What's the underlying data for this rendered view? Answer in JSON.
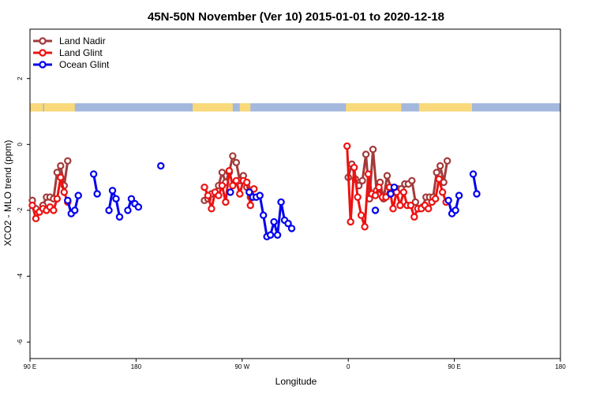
{
  "chart_data": {
    "type": "line",
    "title": "45N-50N November (Ver 10)   2015-01-01 to 2020-12-18",
    "xlabel": "Longitude",
    "ylabel": "XCO2 - MLO trend (ppm)",
    "xlim": [
      90,
      540
    ],
    "ylim": [
      -6.5,
      3.5
    ],
    "x_ticks": [
      {
        "value": 90,
        "label": "90 E"
      },
      {
        "value": 180,
        "label": "180"
      },
      {
        "value": 270,
        "label": "90 W"
      },
      {
        "value": 360,
        "label": "0"
      },
      {
        "value": 450,
        "label": "90 E"
      },
      {
        "value": 540,
        "label": "180"
      }
    ],
    "y_ticks": [
      {
        "value": 2,
        "label": "2"
      },
      {
        "value": 0,
        "label": "0"
      },
      {
        "value": -2,
        "label": "-2"
      },
      {
        "value": -4,
        "label": "-4"
      },
      {
        "value": -6,
        "label": "-6"
      }
    ],
    "land_band": {
      "y_top": 1.25,
      "y_bottom": 1.0,
      "ocean_color": "#a3b8dc",
      "land_color": "#f9d979"
    },
    "legend_position": "top-left",
    "series": [
      {
        "name": "Land Nadir",
        "color": "#a33a3a",
        "segments": [
          [
            [
              92,
              -1.7
            ],
            [
              95,
              -1.95
            ],
            [
              98,
              -2.05
            ],
            [
              101,
              -1.85
            ],
            [
              104,
              -1.6
            ],
            [
              107,
              -1.6
            ],
            [
              110,
              -1.65
            ],
            [
              113,
              -0.85
            ],
            [
              116,
              -0.65
            ],
            [
              119,
              -1.25
            ],
            [
              122,
              -0.5
            ]
          ],
          [
            [
              238,
              -1.7
            ],
            [
              241,
              -1.65
            ],
            [
              244,
              -1.5
            ],
            [
              247,
              -1.45
            ],
            [
              250,
              -1.25
            ],
            [
              253,
              -0.85
            ],
            [
              256,
              -1.15
            ],
            [
              259,
              -0.85
            ],
            [
              262,
              -0.35
            ],
            [
              265,
              -0.55
            ],
            [
              268,
              -1.1
            ],
            [
              271,
              -0.95
            ],
            [
              274,
              -1.3
            ],
            [
              277,
              -1.6
            ]
          ],
          [
            [
              360,
              -1.0
            ],
            [
              363,
              -0.6
            ],
            [
              366,
              -1.05
            ],
            [
              369,
              -1.25
            ],
            [
              372,
              -1.1
            ],
            [
              375,
              -0.3
            ],
            [
              378,
              -1.65
            ],
            [
              381,
              -0.15
            ],
            [
              384,
              -1.4
            ],
            [
              387,
              -1.15
            ],
            [
              390,
              -1.65
            ],
            [
              393,
              -0.95
            ],
            [
              396,
              -1.3
            ],
            [
              399,
              -1.45
            ],
            [
              402,
              -1.35
            ],
            [
              405,
              -1.35
            ],
            [
              408,
              -1.2
            ],
            [
              411,
              -1.2
            ],
            [
              414,
              -1.1
            ],
            [
              417,
              -1.75
            ],
            [
              420,
              -1.95
            ],
            [
              423,
              -1.9
            ],
            [
              426,
              -1.6
            ],
            [
              429,
              -1.6
            ],
            [
              432,
              -1.6
            ],
            [
              435,
              -0.85
            ],
            [
              438,
              -0.65
            ],
            [
              441,
              -1.15
            ],
            [
              444,
              -0.5
            ]
          ]
        ]
      },
      {
        "name": "Land Glint",
        "color": "#ee1111",
        "segments": [
          [
            [
              92,
              -1.85
            ],
            [
              95,
              -2.25
            ],
            [
              98,
              -2.05
            ],
            [
              101,
              -1.95
            ],
            [
              104,
              -2.0
            ],
            [
              107,
              -1.9
            ],
            [
              110,
              -2.0
            ],
            [
              113,
              -1.65
            ],
            [
              116,
              -1.0
            ],
            [
              119,
              -1.45
            ],
            [
              122,
              -1.75
            ]
          ],
          [
            [
              238,
              -1.3
            ],
            [
              241,
              -1.55
            ],
            [
              244,
              -1.95
            ],
            [
              247,
              -1.45
            ],
            [
              250,
              -1.55
            ],
            [
              253,
              -1.25
            ],
            [
              256,
              -1.75
            ],
            [
              259,
              -0.8
            ],
            [
              262,
              -1.25
            ],
            [
              265,
              -1.1
            ],
            [
              268,
              -1.5
            ],
            [
              271,
              -1.1
            ],
            [
              274,
              -1.15
            ],
            [
              277,
              -1.85
            ],
            [
              280,
              -1.35
            ]
          ],
          [
            [
              359,
              -0.05
            ],
            [
              362,
              -2.35
            ],
            [
              365,
              -0.7
            ],
            [
              368,
              -1.6
            ],
            [
              371,
              -2.15
            ],
            [
              374,
              -2.5
            ],
            [
              377,
              -0.9
            ],
            [
              380,
              -1.5
            ],
            [
              383,
              -1.55
            ],
            [
              386,
              -1.3
            ],
            [
              389,
              -1.6
            ],
            [
              392,
              -1.6
            ],
            [
              395,
              -1.3
            ],
            [
              398,
              -1.95
            ],
            [
              401,
              -1.45
            ],
            [
              404,
              -1.85
            ],
            [
              407,
              -1.45
            ],
            [
              410,
              -1.85
            ],
            [
              413,
              -1.85
            ],
            [
              416,
              -2.2
            ],
            [
              419,
              -1.95
            ],
            [
              422,
              -1.95
            ],
            [
              425,
              -1.85
            ],
            [
              428,
              -1.95
            ],
            [
              431,
              -1.75
            ],
            [
              434,
              -1.65
            ],
            [
              437,
              -1.05
            ],
            [
              440,
              -1.45
            ],
            [
              443,
              -1.75
            ]
          ]
        ]
      },
      {
        "name": "Ocean Glint",
        "color": "#0000ee",
        "segments": [
          [
            [
              122,
              -1.7
            ],
            [
              125,
              -2.1
            ],
            [
              128,
              -2.0
            ],
            [
              131,
              -1.55
            ]
          ],
          [
            [
              144,
              -0.9
            ],
            [
              147,
              -1.5
            ]
          ],
          [
            [
              157,
              -2.0
            ],
            [
              160,
              -1.4
            ],
            [
              163,
              -1.65
            ],
            [
              166,
              -2.2
            ]
          ],
          [
            [
              173,
              -2.0
            ],
            [
              176,
              -1.65
            ],
            [
              179,
              -1.8
            ],
            [
              182,
              -1.9
            ]
          ],
          [
            [
              201,
              -0.65
            ]
          ],
          [
            [
              260,
              -1.45
            ]
          ],
          [
            [
              276,
              -1.45
            ],
            [
              279,
              -1.6
            ],
            [
              282,
              -1.6
            ],
            [
              285,
              -1.55
            ],
            [
              288,
              -2.15
            ],
            [
              291,
              -2.8
            ],
            [
              294,
              -2.75
            ],
            [
              297,
              -2.35
            ],
            [
              300,
              -2.75
            ],
            [
              303,
              -1.75
            ],
            [
              306,
              -2.3
            ],
            [
              309,
              -2.4
            ],
            [
              312,
              -2.55
            ]
          ],
          [
            [
              383,
              -2.0
            ]
          ],
          [
            [
              396,
              -1.5
            ],
            [
              399,
              -1.3
            ]
          ],
          [
            [
              445,
              -1.7
            ],
            [
              448,
              -2.1
            ],
            [
              451,
              -2.0
            ],
            [
              454,
              -1.55
            ]
          ],
          [
            [
              466,
              -0.9
            ],
            [
              469,
              -1.5
            ]
          ]
        ]
      }
    ]
  }
}
